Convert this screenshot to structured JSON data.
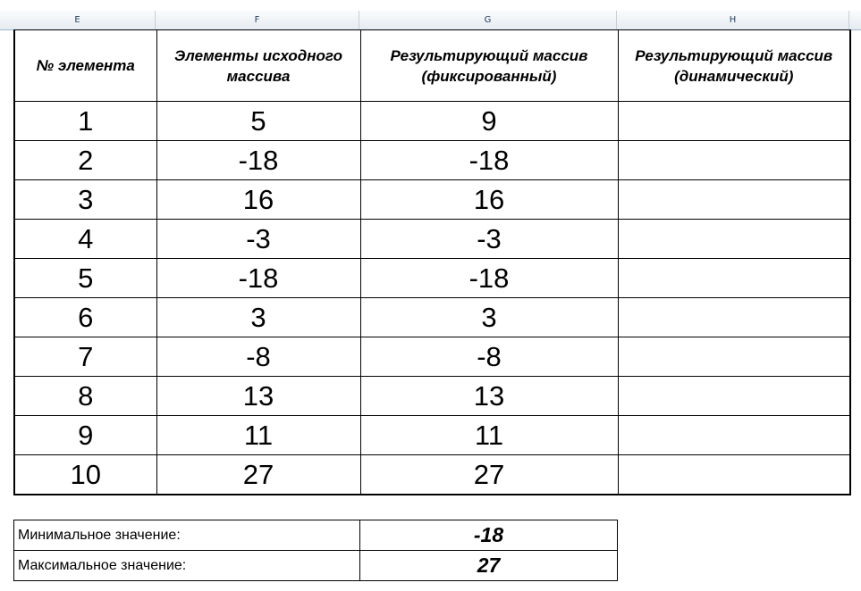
{
  "column_headers": [
    "E",
    "F",
    "G",
    "H"
  ],
  "table": {
    "headers": [
      "№ элемента",
      "Элементы исходного массива",
      "Результирующий массив (фиксированный)",
      "Результирующий массив (динамический)"
    ],
    "rows": [
      [
        "1",
        "5",
        "9",
        ""
      ],
      [
        "2",
        "-18",
        "-18",
        ""
      ],
      [
        "3",
        "16",
        "16",
        ""
      ],
      [
        "4",
        "-3",
        "-3",
        ""
      ],
      [
        "5",
        "-18",
        "-18",
        ""
      ],
      [
        "6",
        "3",
        "3",
        ""
      ],
      [
        "7",
        "-8",
        "-8",
        ""
      ],
      [
        "8",
        "13",
        "13",
        ""
      ],
      [
        "9",
        "11",
        "11",
        ""
      ],
      [
        "10",
        "27",
        "27",
        ""
      ]
    ]
  },
  "summary": {
    "min_label": "Минимальное значение:",
    "min_value": "-18",
    "max_label": "Максимальное значение:",
    "max_value": "27"
  }
}
